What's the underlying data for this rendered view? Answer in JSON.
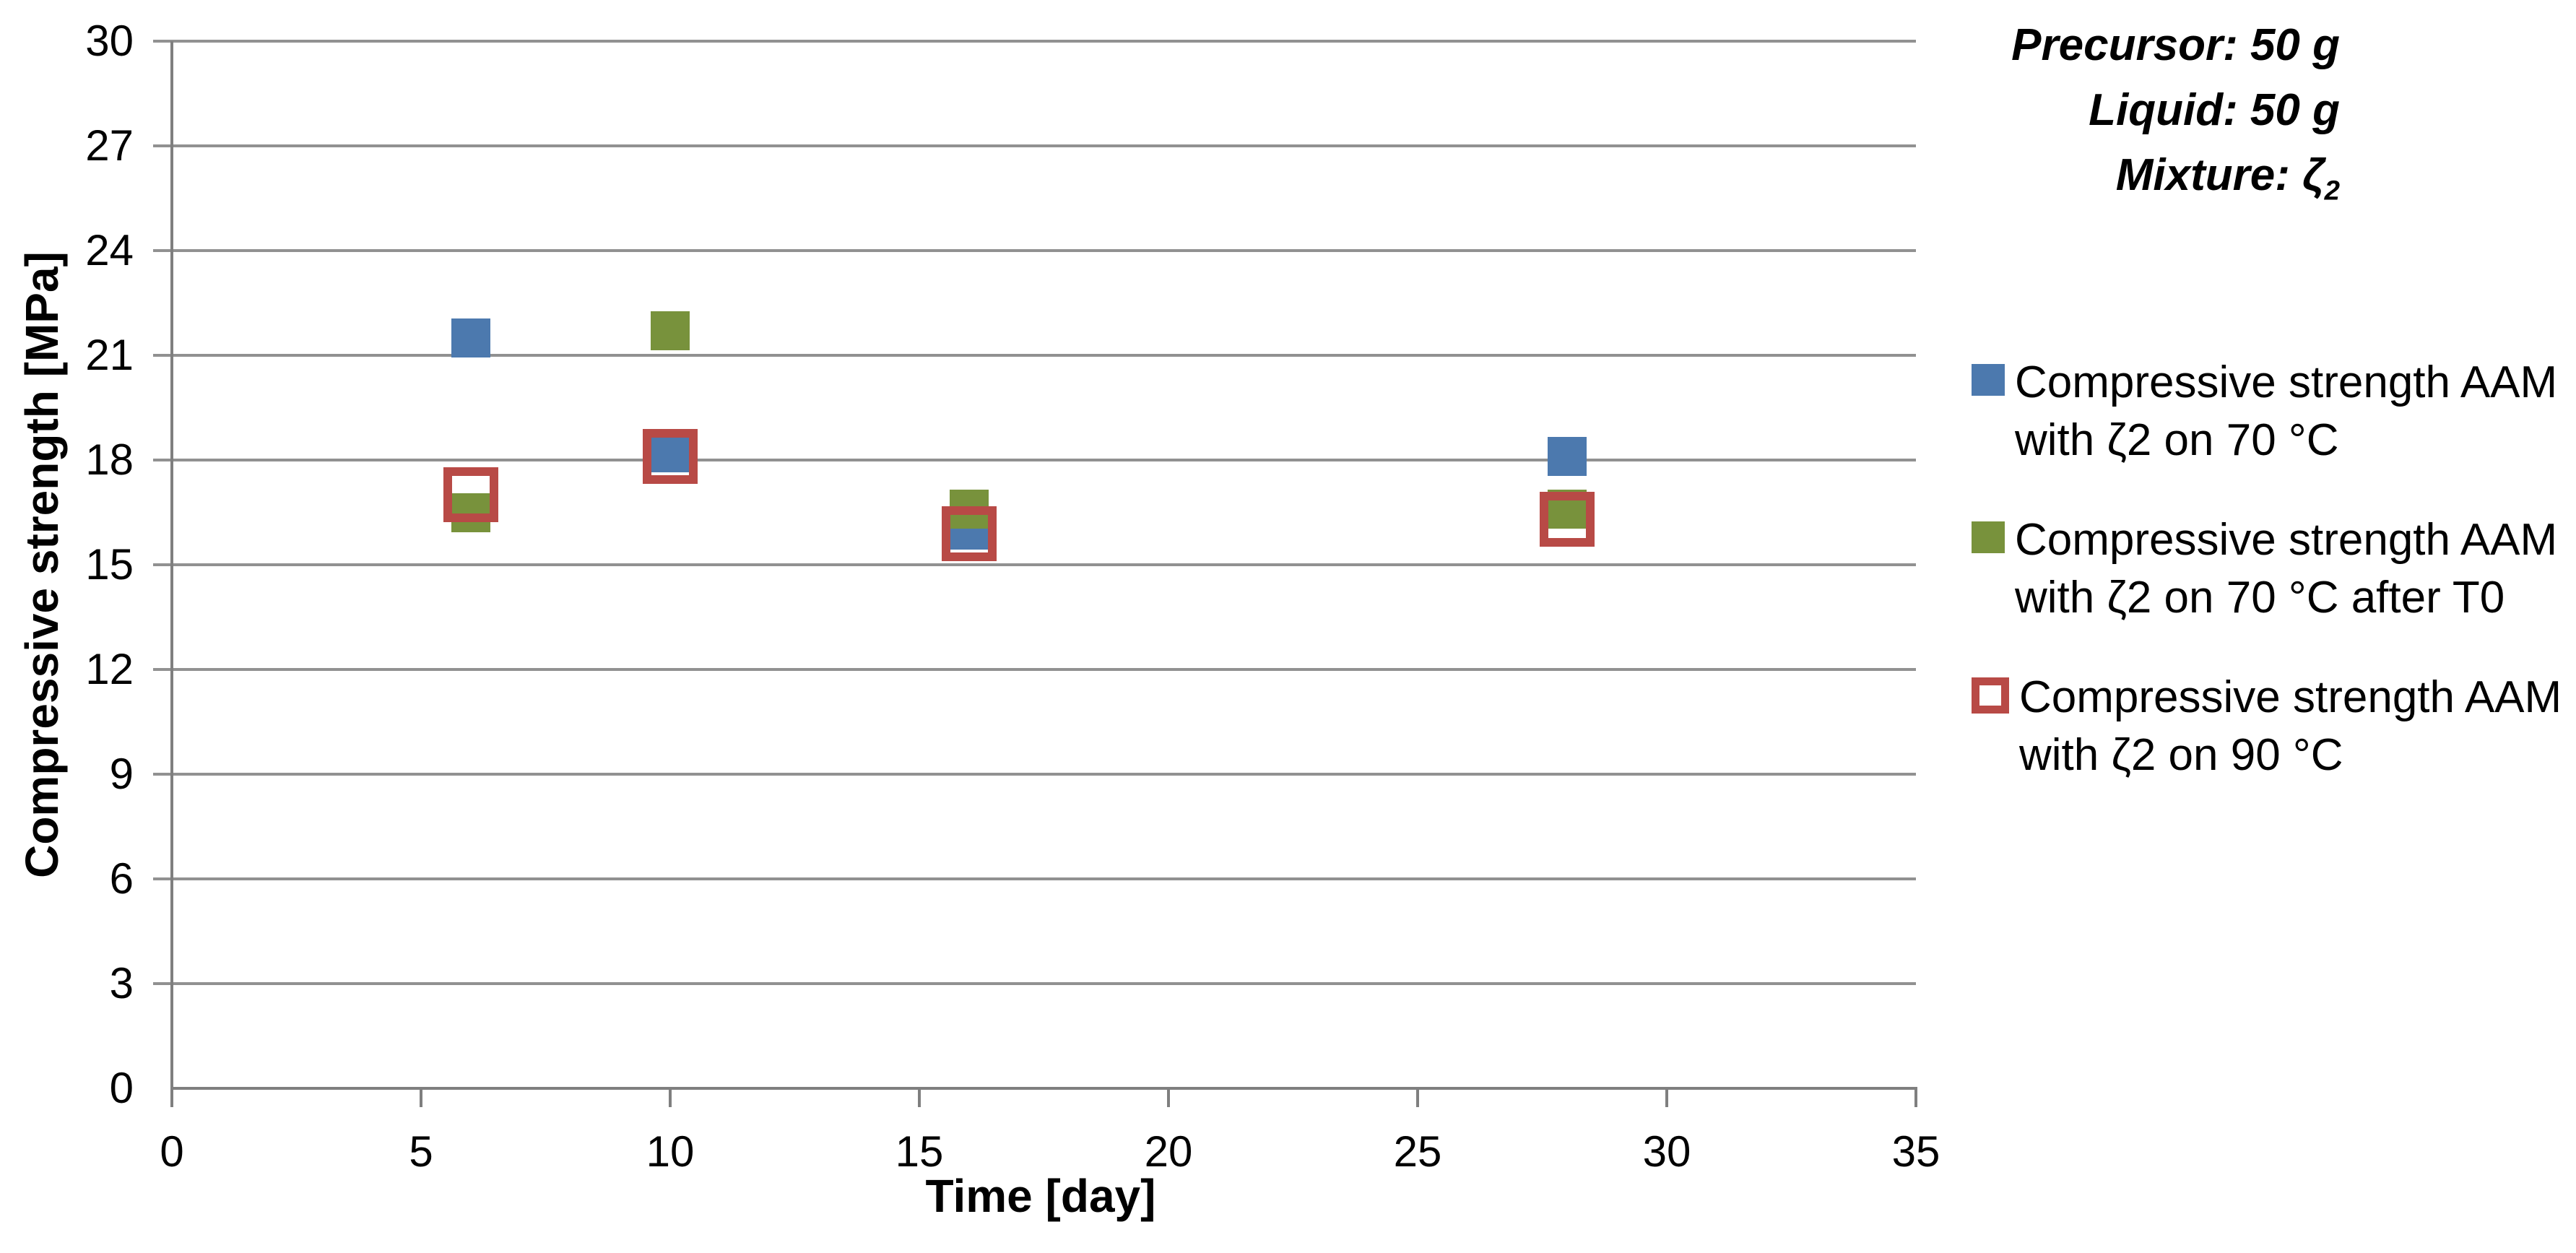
{
  "page": {
    "background": "#ffffff",
    "text_color": "#000000"
  },
  "annotation": {
    "lines": [
      {
        "text": "Precursor: 50 g",
        "sub": ""
      },
      {
        "text": "Liquid: 50 g",
        "sub": ""
      },
      {
        "text": "Mixture: ζ",
        "sub": "2"
      }
    ]
  },
  "chart_data": {
    "type": "scatter",
    "title": "",
    "xlabel": "Time [day]",
    "ylabel": "Compressive strength [MPa]",
    "xlim": [
      0,
      35
    ],
    "ylim": [
      0,
      30
    ],
    "xticks": [
      0,
      5,
      10,
      15,
      20,
      25,
      30,
      35
    ],
    "yticks": [
      0,
      3,
      6,
      9,
      12,
      15,
      18,
      21,
      24,
      27,
      30
    ],
    "grid": "horizontal",
    "legend_position": "right",
    "axis_color": "#7f7f7f",
    "gridline_color": "#919191",
    "series": [
      {
        "name": "Compressive strength AAM with ζ2 on 70 °C",
        "legend_lines": [
          "Compressive strength AAM",
          "with ζ2 on 70 °C"
        ],
        "marker": "filled-square",
        "color": "#4C79AE",
        "points": [
          {
            "x": 6,
            "y": 21.5
          },
          {
            "x": 10,
            "y": 18.2
          },
          {
            "x": 16,
            "y": 16.0
          },
          {
            "x": 28,
            "y": 18.1
          }
        ]
      },
      {
        "name": "Compressive strength AAM with ζ2 on 70 °C after T0",
        "legend_lines": [
          "Compressive strength AAM",
          "with ζ2 on 70 °C after T0"
        ],
        "marker": "filled-square",
        "color": "#78923C",
        "points": [
          {
            "x": 6,
            "y": 16.5
          },
          {
            "x": 10,
            "y": 21.7
          },
          {
            "x": 16,
            "y": 16.6
          },
          {
            "x": 28,
            "y": 16.6
          }
        ]
      },
      {
        "name": "Compressive strength AAM with ζ2 on 90 °C",
        "legend_lines": [
          "Compressive strength AAM",
          "with ζ2 on 90 °C"
        ],
        "marker": "open-square",
        "color": "#B84A46",
        "points": [
          {
            "x": 6,
            "y": 17.0
          },
          {
            "x": 10,
            "y": 18.1
          },
          {
            "x": 16,
            "y": 15.9
          },
          {
            "x": 28,
            "y": 16.3
          }
        ]
      }
    ]
  }
}
